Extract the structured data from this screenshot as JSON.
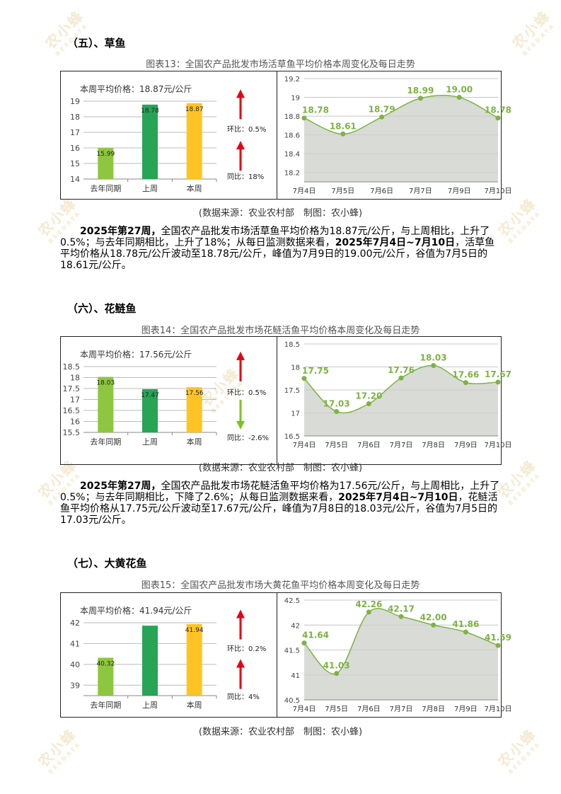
{
  "watermark": {
    "text": "农小蜂",
    "sub": "BEEDATA"
  },
  "sections": [
    {
      "title": "（五）、草鱼",
      "chart_title": "图表13：全国农产品批发市场活草鱼平均价格本周变化及每日走势",
      "current_label": "本周平均价格：18.87元/公斤",
      "source": "(数据来源：农业农村部　制图：农小蜂)",
      "indicators": {
        "hb_label": "环比：0.5%",
        "hb_dir": "up",
        "tb_label": "同比：18%",
        "tb_dir": "up"
      },
      "paragraph": {
        "p1": "2025年第27周，",
        "p2": "全国农产品批发市场活草鱼平均价格为18.87元/公斤，与上周相比，上升了0.5%；与去年同期相比，上升了18%；从每日监测数据来看，",
        "p3": "2025年7月4日~7月10日",
        "p4": "，活草鱼平均价格从18.78元/公斤波动至18.78元/公斤，峰值为7月9日的19.00元/公斤，谷值为7月5日的18.61元/公斤。"
      },
      "chart_data": [
        {
          "type": "bar",
          "categories": [
            "去年同期",
            "上周",
            "本周"
          ],
          "values": [
            15.99,
            18.78,
            18.87
          ],
          "value_labels": [
            "15.99",
            "18.78",
            "18.87"
          ],
          "ylim": [
            14,
            19
          ],
          "yticks": [
            "14",
            "15",
            "16",
            "17",
            "18",
            "19"
          ],
          "colors": [
            "#8dc63f",
            "#27a455",
            "#ffc423"
          ]
        },
        {
          "type": "area",
          "x": [
            "7月4日",
            "7月5日",
            "7月6日",
            "7月7日",
            "7月9日",
            "7月10日"
          ],
          "values": [
            18.78,
            18.61,
            18.79,
            18.99,
            19.0,
            18.78
          ],
          "value_labels": [
            "18.78",
            "18.61",
            "18.79",
            "18.99",
            "19.00",
            "18.78"
          ],
          "ylim": [
            18.1,
            19.2
          ],
          "yticks": [
            18.2,
            18.4,
            18.6,
            18.8,
            19,
            19.2
          ],
          "ytick_labels": [
            "18.2",
            "18.4",
            "18.6",
            "18.8",
            "19",
            "19.2"
          ],
          "color": "#7cb342"
        }
      ]
    },
    {
      "title": "（六）、花鲢鱼",
      "chart_title": "图表14：全国农产品批发市场花鲢活鱼平均价格本周变化及每日走势",
      "current_label": "本周平均价格：17.56元/公斤",
      "source": "(数据来源：农业农村部　制图：农小蜂)",
      "indicators": {
        "hb_label": "环比：0.5%",
        "hb_dir": "up",
        "tb_label": "同比：-2.6%",
        "tb_dir": "down"
      },
      "paragraph": {
        "p1": "2025年第27周，",
        "p2": "全国农产品批发市场花鲢活鱼平均价格为17.56元/公斤，与上周相比，上升了0.5%；与去年同期相比，下降了2.6%；从每日监测数据来看，",
        "p3": "2025年7月4日~7月10日",
        "p4": "，花鲢活鱼平均价格从17.75元/公斤波动至17.67元/公斤，峰值为7月8日的18.03元/公斤，谷值为7月5日的17.03元/公斤。"
      },
      "chart_data": [
        {
          "type": "bar",
          "categories": [
            "去年同期",
            "上周",
            "本周"
          ],
          "values": [
            18.03,
            17.47,
            17.56
          ],
          "value_labels": [
            "18.03",
            "17.47",
            "17.56"
          ],
          "ylim": [
            15.5,
            18.5
          ],
          "yticks": [
            "15.5",
            "16",
            "16.5",
            "17",
            "17.5",
            "18",
            "18.5"
          ],
          "colors": [
            "#8dc63f",
            "#27a455",
            "#ffc423"
          ]
        },
        {
          "type": "area",
          "x": [
            "7月4日",
            "7月5日",
            "7月6日",
            "7月7日",
            "7月8日",
            "7月9日",
            "7月10日"
          ],
          "values": [
            17.75,
            17.03,
            17.2,
            17.76,
            18.03,
            17.66,
            17.67
          ],
          "value_labels": [
            "17.75",
            "17.03",
            "17.20",
            "17.76",
            "18.03",
            "17.66",
            "17.67"
          ],
          "ylim": [
            16.5,
            18.5
          ],
          "yticks": [
            16.5,
            17,
            17.5,
            18,
            18.5
          ],
          "ytick_labels": [
            "16.5",
            "17",
            "17.5",
            "18",
            "18.5"
          ],
          "color": "#7cb342"
        }
      ]
    },
    {
      "title": "（七）、大黄花鱼",
      "chart_title": "图表15：全国农产品批发市场大黄花鱼平均价格本周变化及每日走势",
      "current_label": "本周平均价格：41.94元/公斤",
      "source": "(数据来源：农业农村部　制图：农小蜂)",
      "indicators": {
        "hb_label": "环比：0.2%",
        "hb_dir": "up",
        "tb_label": "同比：4%",
        "tb_dir": "up"
      },
      "chart_data": [
        {
          "type": "bar",
          "categories": [
            "去年同期",
            "上周",
            "本周"
          ],
          "values": [
            40.32,
            41.86,
            41.94
          ],
          "value_labels": [
            "40.32",
            "",
            "41.94"
          ],
          "ylim": [
            38.5,
            42
          ],
          "yticks": [
            "39",
            "40",
            "41",
            "42"
          ],
          "yticks_values": [
            39,
            40,
            41,
            42
          ],
          "colors": [
            "#8dc63f",
            "#27a455",
            "#ffc423"
          ]
        },
        {
          "type": "area",
          "x": [
            "7月4日",
            "7月5日",
            "7月6日",
            "7月7日",
            "7月8日",
            "7月9日",
            "7月10日"
          ],
          "values": [
            41.64,
            41.03,
            42.26,
            42.17,
            42.0,
            41.86,
            41.59
          ],
          "value_labels": [
            "41.64",
            "41.03",
            "42.26",
            "42.17",
            "42.00",
            "41.86",
            "41.59"
          ],
          "ylim": [
            40.5,
            42.5
          ],
          "yticks": [
            40.5,
            41,
            41.5,
            42,
            42.5
          ],
          "ytick_labels": [
            "40.5",
            "41",
            "41.5",
            "42",
            "42.5"
          ],
          "color": "#7cb342"
        }
      ]
    }
  ]
}
